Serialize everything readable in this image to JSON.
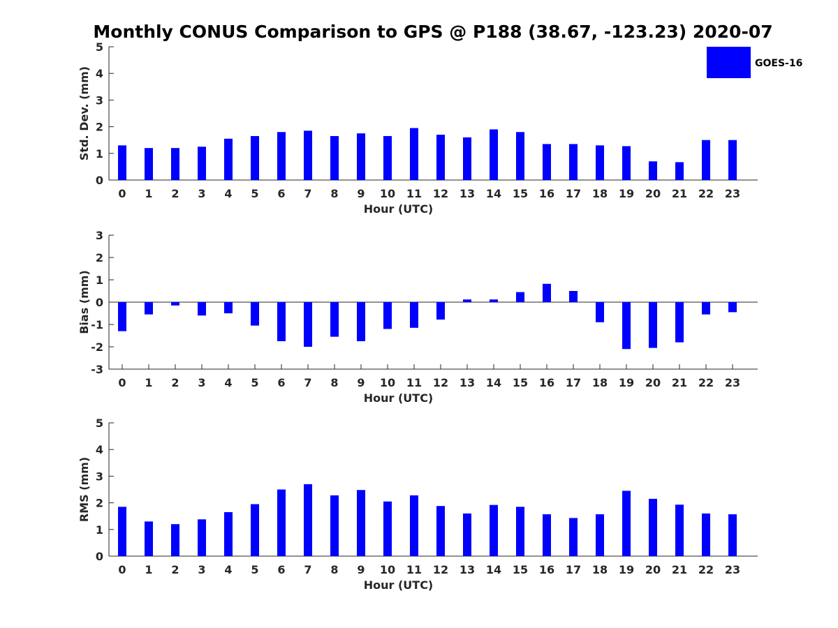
{
  "title": "Monthly CONUS Comparison to GPS @ P188 (38.67, -123.23) 2020-07",
  "legend": {
    "label": "GOES-16",
    "color": "#0000ff",
    "placement": "top-right"
  },
  "chart_data": [
    {
      "type": "bar",
      "title": "",
      "xlabel": "Hour (UTC)",
      "ylabel": "Std. Dev. (mm)",
      "ylim": [
        0,
        5
      ],
      "yticks": [
        0,
        1,
        2,
        3,
        4,
        5
      ],
      "grid": false,
      "categories": [
        "0",
        "1",
        "2",
        "3",
        "4",
        "5",
        "6",
        "7",
        "8",
        "9",
        "10",
        "11",
        "12",
        "13",
        "14",
        "15",
        "16",
        "17",
        "18",
        "19",
        "20",
        "21",
        "22",
        "23"
      ],
      "series": [
        {
          "name": "GOES-16",
          "color": "#0000ff",
          "values": [
            1.3,
            1.2,
            1.2,
            1.25,
            1.55,
            1.65,
            1.8,
            1.85,
            1.65,
            1.75,
            1.65,
            1.95,
            1.7,
            1.6,
            1.9,
            1.8,
            1.35,
            1.35,
            1.3,
            1.27,
            0.7,
            0.67,
            1.5,
            1.5
          ]
        }
      ]
    },
    {
      "type": "bar",
      "title": "",
      "xlabel": "Hour (UTC)",
      "ylabel": "Bias (mm)",
      "ylim": [
        -3,
        3
      ],
      "yticks": [
        -3,
        -2,
        -1,
        0,
        1,
        2,
        3
      ],
      "zero_line": true,
      "grid": false,
      "categories": [
        "0",
        "1",
        "2",
        "3",
        "4",
        "5",
        "6",
        "7",
        "8",
        "9",
        "10",
        "11",
        "12",
        "13",
        "14",
        "15",
        "16",
        "17",
        "18",
        "19",
        "20",
        "21",
        "22",
        "23"
      ],
      "series": [
        {
          "name": "GOES-16",
          "color": "#0000ff",
          "values": [
            -1.3,
            -0.55,
            -0.15,
            -0.6,
            -0.5,
            -1.05,
            -1.75,
            -2.0,
            -1.55,
            -1.75,
            -1.2,
            -1.15,
            -0.78,
            0.12,
            0.12,
            0.45,
            0.82,
            0.5,
            -0.9,
            -2.1,
            -2.05,
            -1.8,
            -0.55,
            -0.45
          ]
        }
      ]
    },
    {
      "type": "bar",
      "title": "",
      "xlabel": "Hour (UTC)",
      "ylabel": "RMS (mm)",
      "ylim": [
        0,
        5
      ],
      "yticks": [
        0,
        1,
        2,
        3,
        4,
        5
      ],
      "grid": false,
      "categories": [
        "0",
        "1",
        "2",
        "3",
        "4",
        "5",
        "6",
        "7",
        "8",
        "9",
        "10",
        "11",
        "12",
        "13",
        "14",
        "15",
        "16",
        "17",
        "18",
        "19",
        "20",
        "21",
        "22",
        "23"
      ],
      "series": [
        {
          "name": "GOES-16",
          "color": "#0000ff",
          "values": [
            1.85,
            1.3,
            1.2,
            1.38,
            1.65,
            1.95,
            2.5,
            2.7,
            2.28,
            2.48,
            2.05,
            2.28,
            1.88,
            1.6,
            1.92,
            1.85,
            1.57,
            1.43,
            1.57,
            2.45,
            2.15,
            1.93,
            1.6,
            1.57
          ]
        }
      ]
    }
  ]
}
